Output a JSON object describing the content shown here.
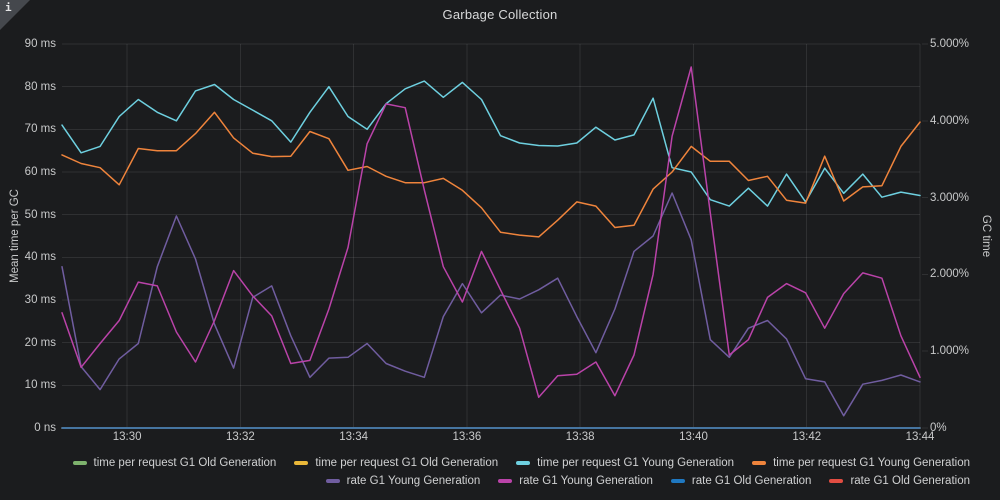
{
  "panel": {
    "title": "Garbage Collection",
    "info_icon": "i"
  },
  "left_axis": {
    "label": "Mean time per GC",
    "unit": "ms",
    "min": 0,
    "max": 90,
    "ticks": [
      "0 ns",
      "10 ms",
      "20 ms",
      "30 ms",
      "40 ms",
      "50 ms",
      "60 ms",
      "70 ms",
      "80 ms",
      "90 ms"
    ]
  },
  "right_axis": {
    "label": "GC time",
    "unit": "percent",
    "min": 0,
    "max": 5,
    "ticks": [
      "0%",
      "1.000%",
      "2.000%",
      "3.000%",
      "4.000%",
      "5.000%"
    ]
  },
  "x_axis": {
    "ticks": [
      "13:30",
      "13:32",
      "13:34",
      "13:36",
      "13:38",
      "13:40",
      "13:42",
      "13:44"
    ],
    "tick_minutes": [
      30,
      32,
      34,
      36,
      38,
      40,
      42,
      44
    ],
    "t_min": 28.85,
    "t_max": 44
  },
  "chart_data": {
    "type": "line",
    "title": "Garbage Collection",
    "xlabel": "",
    "ylabel_left": "Mean time per GC",
    "ylabel_right": "GC time",
    "left_ylim": [
      0,
      90
    ],
    "right_ylim": [
      0,
      5
    ],
    "x_start": "13:29",
    "x_end": "13:44",
    "sample_interval_seconds": 20,
    "grid": true,
    "legend_position": "bottom",
    "series": [
      {
        "name": "time per request G1 Old Generation",
        "color": "#7EB26D",
        "axis": "left",
        "values": [
          0,
          0
        ]
      },
      {
        "name": "time per request G1 Old Generation",
        "color": "#EAB839",
        "axis": "left",
        "values": [
          0,
          0
        ]
      },
      {
        "name": "rate G1 Old Generation",
        "color": "#E24D42",
        "axis": "right",
        "values": [
          0,
          0
        ]
      },
      {
        "name": "rate G1 Old Generation",
        "color": "#1F78C1",
        "axis": "right",
        "values": [
          0,
          0
        ]
      },
      {
        "name": "time per request G1 Young Generation",
        "color": "#6ED0E0",
        "axis": "left",
        "values": [
          71,
          64.5,
          66,
          73,
          77,
          74,
          72,
          79,
          80.5,
          77,
          74.5,
          72,
          67,
          74,
          80,
          73,
          70,
          76,
          79.5,
          81.3,
          77.5,
          81,
          77,
          68.5,
          66.8,
          66.2,
          66.1,
          66.8,
          70.5,
          67.5,
          68.7,
          77.3,
          61,
          60,
          53.5,
          52,
          56.2,
          52,
          59.5,
          53,
          60.9,
          55,
          59.5,
          54.1,
          55.3,
          54.5
        ]
      },
      {
        "name": "time per request G1 Young Generation",
        "color": "#EF843C",
        "axis": "left",
        "values": [
          64,
          62,
          61,
          57,
          65.5,
          65,
          65,
          69,
          74,
          68,
          64.4,
          63.6,
          63.7,
          69.5,
          67.8,
          60.4,
          61.3,
          59,
          57.5,
          57.5,
          58.5,
          55.7,
          51.6,
          45.9,
          45.2,
          44.8,
          48.7,
          53,
          52,
          47,
          47.5,
          56,
          60,
          66,
          62.5,
          62.5,
          58,
          59,
          53.4,
          52.7,
          63.7,
          53.2,
          56.5,
          56.8,
          66,
          71.7
        ]
      },
      {
        "name": "rate G1 Young Generation",
        "color": "#705DA0",
        "axis": "right",
        "values": [
          2.1,
          0.8,
          0.5,
          0.9,
          1.1,
          2.1,
          2.76,
          2.2,
          1.35,
          0.78,
          1.7,
          1.85,
          1.2,
          0.66,
          0.91,
          0.92,
          1.1,
          0.84,
          0.74,
          0.66,
          1.45,
          1.88,
          1.5,
          1.73,
          1.68,
          1.8,
          1.95,
          1.45,
          0.98,
          1.55,
          2.3,
          2.5,
          3.06,
          2.45,
          1.15,
          0.92,
          1.3,
          1.4,
          1.16,
          0.64,
          0.6,
          0.16,
          0.57,
          0.62,
          0.69,
          0.6
        ]
      },
      {
        "name": "rate G1 Young Generation",
        "color": "#BA43A9",
        "axis": "right",
        "values": [
          1.5,
          0.79,
          1.1,
          1.4,
          1.9,
          1.85,
          1.25,
          0.86,
          1.4,
          2.05,
          1.72,
          1.46,
          0.84,
          0.88,
          1.55,
          2.35,
          3.7,
          4.22,
          4.17,
          3.1,
          2.1,
          1.64,
          2.3,
          1.8,
          1.3,
          0.4,
          0.68,
          0.7,
          0.86,
          0.42,
          0.95,
          2.0,
          3.8,
          4.7,
          2.8,
          0.95,
          1.15,
          1.7,
          1.88,
          1.76,
          1.3,
          1.75,
          2.02,
          1.95,
          1.2,
          0.66
        ]
      }
    ]
  },
  "legend": {
    "items": [
      {
        "label": "time per request G1 Old Generation",
        "color": "#7EB26D"
      },
      {
        "label": "time per request G1 Old Generation",
        "color": "#EAB839"
      },
      {
        "label": "time per request G1 Young Generation",
        "color": "#6ED0E0"
      },
      {
        "label": "time per request G1 Young Generation",
        "color": "#EF843C"
      },
      {
        "label": "rate G1 Young Generation",
        "color": "#705DA0"
      },
      {
        "label": "rate G1 Young Generation",
        "color": "#BA43A9"
      },
      {
        "label": "rate G1 Old Generation",
        "color": "#1F78C1"
      },
      {
        "label": "rate G1 Old Generation",
        "color": "#E24D42"
      }
    ]
  },
  "style": {
    "background": "#1b1c1e",
    "grid_color": "rgba(255,255,255,0.09)",
    "text_color": "#c8c9ca",
    "title_color": "#d8d9da"
  }
}
